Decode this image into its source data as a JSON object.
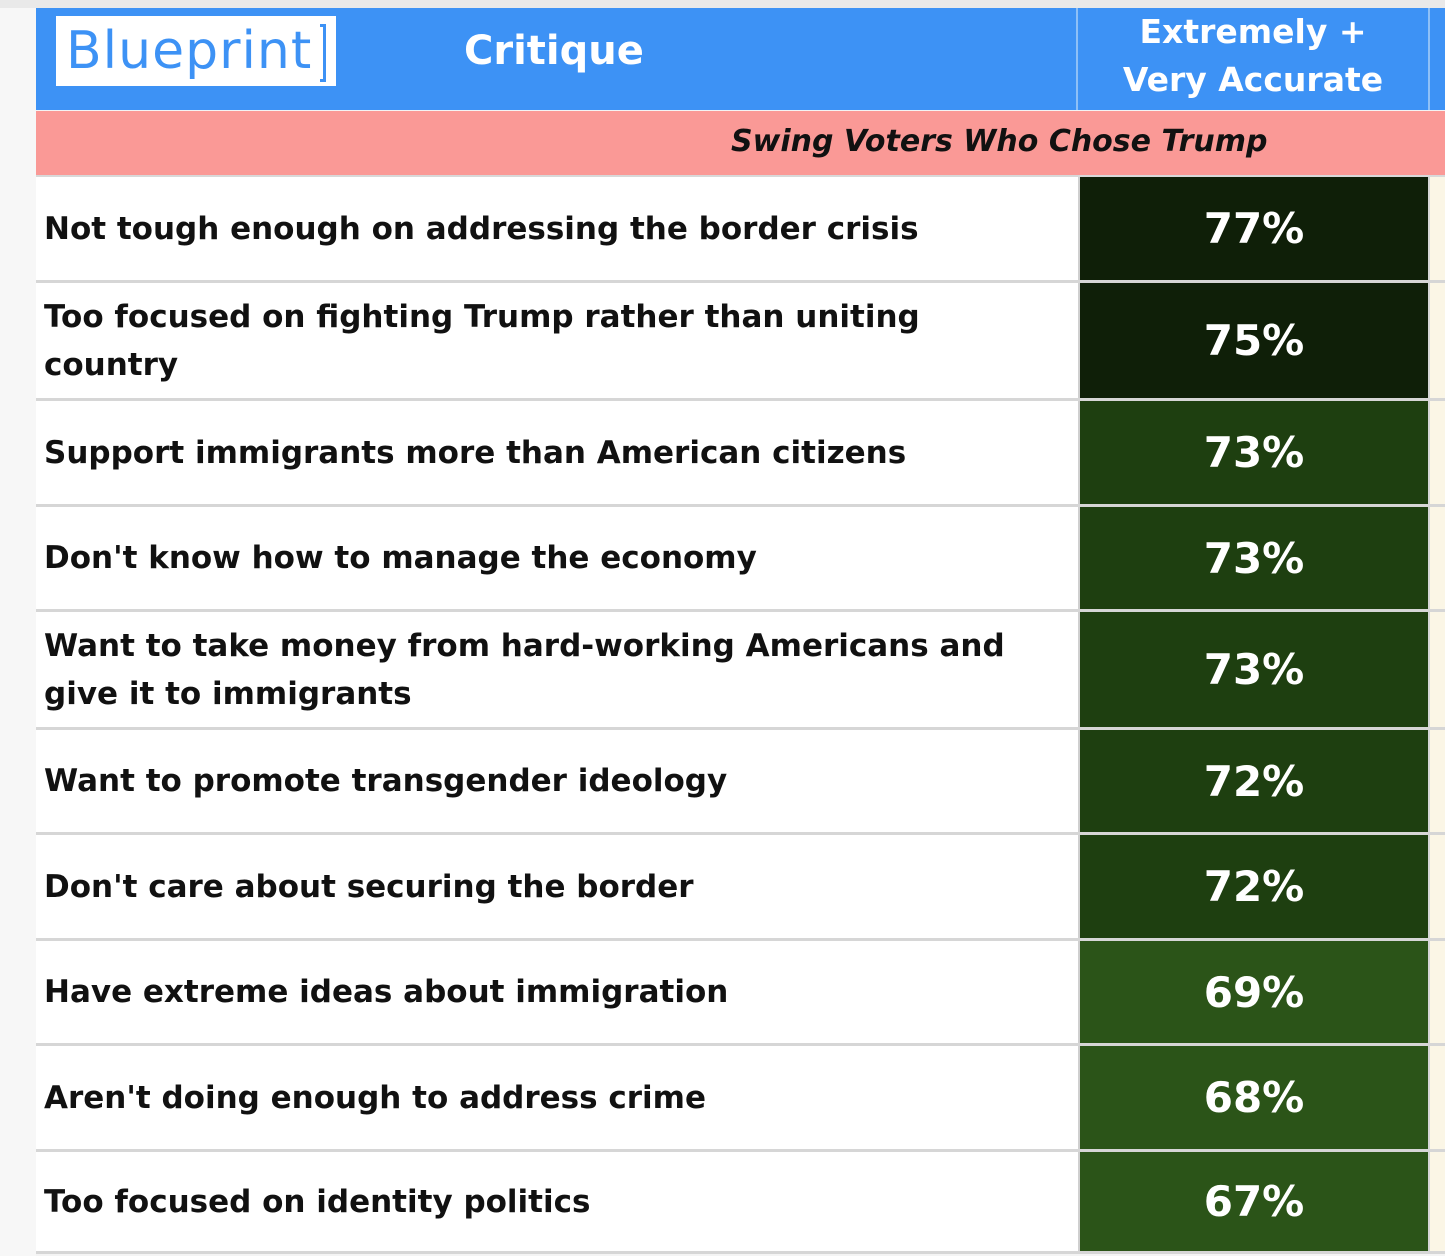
{
  "header": {
    "logo_text": "Blueprint",
    "critique_label": "Critique",
    "metric_line1": "Extremely +",
    "metric_line2": "Very Accurate"
  },
  "subheader": {
    "segment_label": "Swing Voters Who Chose Trump"
  },
  "colors": {
    "header_blue": "#3d92f5",
    "segment_pink": "#fa9996",
    "cell_dark": "#0f1f08",
    "cell_mid": "#1e3f10",
    "cell_light": "#2b5418"
  },
  "chart_data": {
    "type": "table",
    "columns": [
      "Critique",
      "Extremely + Very Accurate"
    ],
    "segment": "Swing Voters Who Chose Trump",
    "rows": [
      {
        "critique": "Not tough enough on addressing the border crisis",
        "value": 77,
        "label": "77%"
      },
      {
        "critique": "Too focused on fighting Trump rather than uniting country",
        "value": 75,
        "label": "75%"
      },
      {
        "critique": "Support immigrants more than American citizens",
        "value": 73,
        "label": "73%"
      },
      {
        "critique": "Don't know how to manage the economy",
        "value": 73,
        "label": "73%"
      },
      {
        "critique": "Want to take money from hard-working Americans and give it to immigrants",
        "value": 73,
        "label": "73%"
      },
      {
        "critique": "Want to promote transgender ideology",
        "value": 72,
        "label": "72%"
      },
      {
        "critique": "Don't care about securing the border",
        "value": 72,
        "label": "72%"
      },
      {
        "critique": "Have extreme ideas about immigration",
        "value": 69,
        "label": "69%"
      },
      {
        "critique": "Aren't doing enough to address crime",
        "value": 68,
        "label": "68%"
      },
      {
        "critique": "Too focused on identity politics",
        "value": 67,
        "label": "67%"
      }
    ]
  }
}
